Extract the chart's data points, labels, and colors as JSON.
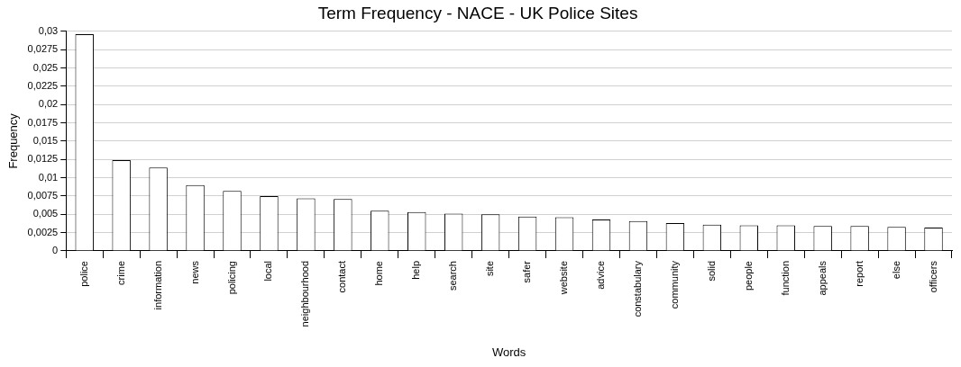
{
  "chart_data": {
    "type": "bar",
    "title": "Term Frequency - NACE - UK Police Sites",
    "xlabel": "Words",
    "ylabel": "Frequency",
    "categories": [
      "police",
      "crime",
      "information",
      "news",
      "policing",
      "local",
      "neighbourhood",
      "contact",
      "home",
      "help",
      "search",
      "site",
      "safer",
      "website",
      "advice",
      "constabulary",
      "community",
      "solid",
      "people",
      "function",
      "appeals",
      "report",
      "else",
      "officers"
    ],
    "values": [
      0.0296,
      0.0124,
      0.0114,
      0.009,
      0.0082,
      0.0075,
      0.0072,
      0.0071,
      0.0055,
      0.0053,
      0.0051,
      0.005,
      0.0047,
      0.0046,
      0.0043,
      0.0041,
      0.0038,
      0.0036,
      0.0035,
      0.0035,
      0.0034,
      0.0034,
      0.0033,
      0.0032
    ],
    "color": "#ffffff",
    "ylim": [
      0,
      0.03
    ],
    "yticks": [
      0,
      {
        "value": 0.0025,
        "label": "0,0025"
      },
      {
        "value": 0.005,
        "label": "0,005"
      },
      {
        "value": 0.0075,
        "label": "0,0075"
      },
      {
        "value": 0.01,
        "label": "0,01"
      },
      {
        "value": 0.0125,
        "label": "0,0125"
      },
      {
        "value": 0.015,
        "label": "0,015"
      },
      {
        "value": 0.0175,
        "label": "0,0175"
      },
      {
        "value": 0.02,
        "label": "0,02"
      },
      {
        "value": 0.0225,
        "label": "0,0225"
      },
      {
        "value": 0.025,
        "label": "0,025"
      },
      {
        "value": 0.0275,
        "label": "0,0275"
      },
      {
        "value": 0.03,
        "label": "0,03"
      }
    ],
    "grid": "y",
    "legend": false
  }
}
